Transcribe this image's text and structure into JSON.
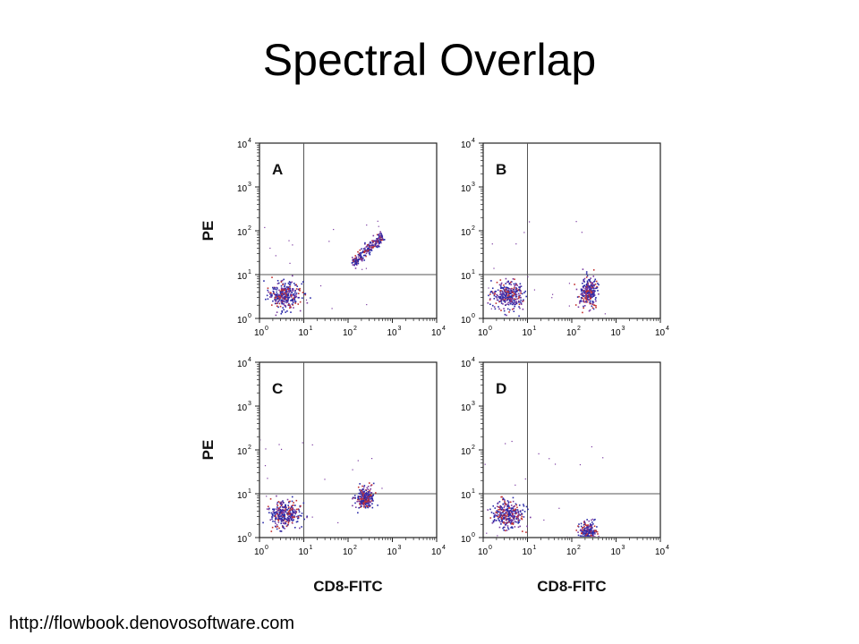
{
  "slide": {
    "title": "Spectral Overlap",
    "source_url": "http://flowbook.denovosoftware.com"
  },
  "colors": {
    "dot_primary": "#2a2aa8",
    "dot_secondary": "#c23030",
    "dot_tertiary": "#7a3aa0",
    "axis": "#222222",
    "gate": "#555555"
  },
  "chart_data": [
    {
      "type": "scatter",
      "panel_label": "A",
      "xlabel": "",
      "ylabel": "PE",
      "x_scale": "log",
      "y_scale": "log",
      "xlim": [
        1,
        10000
      ],
      "ylim": [
        1,
        10000
      ],
      "x_ticks": [
        "10",
        "10",
        "10",
        "10",
        "10"
      ],
      "x_tick_exponents": [
        "0",
        "1",
        "2",
        "3",
        "4"
      ],
      "y_ticks": [
        "10",
        "10",
        "10",
        "10",
        "10"
      ],
      "y_tick_exponents": [
        "0",
        "1",
        "2",
        "3",
        "4"
      ],
      "quadrant_gate": {
        "x": 10,
        "y": 10
      },
      "populations": [
        {
          "shape": "blob",
          "center": [
            3.5,
            3.5
          ],
          "spread": [
            0.18,
            0.16
          ],
          "count": 320
        },
        {
          "shape": "diagonal",
          "from": [
            120,
            18
          ],
          "to": [
            600,
            80
          ],
          "spread": 0.05,
          "count": 240
        }
      ]
    },
    {
      "type": "scatter",
      "panel_label": "B",
      "xlabel": "",
      "ylabel": "",
      "x_scale": "log",
      "y_scale": "log",
      "xlim": [
        1,
        10000
      ],
      "ylim": [
        1,
        10000
      ],
      "x_ticks": [
        "10",
        "10",
        "10",
        "10",
        "10"
      ],
      "x_tick_exponents": [
        "0",
        "1",
        "2",
        "3",
        "4"
      ],
      "y_ticks": [
        "10",
        "10",
        "10",
        "10",
        "10"
      ],
      "y_tick_exponents": [
        "0",
        "1",
        "2",
        "3",
        "4"
      ],
      "quadrant_gate": {
        "x": 10,
        "y": 10
      },
      "populations": [
        {
          "shape": "blob",
          "center": [
            3.5,
            3.5
          ],
          "spread": [
            0.18,
            0.16
          ],
          "count": 320
        },
        {
          "shape": "blob",
          "center": [
            230,
            4
          ],
          "spread": [
            0.1,
            0.16
          ],
          "count": 260
        }
      ]
    },
    {
      "type": "scatter",
      "panel_label": "C",
      "xlabel": "CD8-FITC",
      "ylabel": "PE",
      "x_scale": "log",
      "y_scale": "log",
      "xlim": [
        1,
        10000
      ],
      "ylim": [
        1,
        10000
      ],
      "x_ticks": [
        "10",
        "10",
        "10",
        "10",
        "10"
      ],
      "x_tick_exponents": [
        "0",
        "1",
        "2",
        "3",
        "4"
      ],
      "y_ticks": [
        "10",
        "10",
        "10",
        "10",
        "10"
      ],
      "y_tick_exponents": [
        "0",
        "1",
        "2",
        "3",
        "4"
      ],
      "quadrant_gate": {
        "x": 10,
        "y": 10
      },
      "populations": [
        {
          "shape": "blob",
          "center": [
            3.5,
            3.5
          ],
          "spread": [
            0.18,
            0.16
          ],
          "count": 320
        },
        {
          "shape": "blob",
          "center": [
            230,
            8
          ],
          "spread": [
            0.1,
            0.12
          ],
          "count": 260
        }
      ]
    },
    {
      "type": "scatter",
      "panel_label": "D",
      "xlabel": "CD8-FITC",
      "ylabel": "",
      "x_scale": "log",
      "y_scale": "log",
      "xlim": [
        1,
        10000
      ],
      "ylim": [
        1,
        10000
      ],
      "x_ticks": [
        "10",
        "10",
        "10",
        "10",
        "10"
      ],
      "x_tick_exponents": [
        "0",
        "1",
        "2",
        "3",
        "4"
      ],
      "y_ticks": [
        "10",
        "10",
        "10",
        "10",
        "10"
      ],
      "y_tick_exponents": [
        "0",
        "1",
        "2",
        "3",
        "4"
      ],
      "quadrant_gate": {
        "x": 10,
        "y": 10
      },
      "populations": [
        {
          "shape": "blob",
          "center": [
            3.5,
            3.5
          ],
          "spread": [
            0.18,
            0.16
          ],
          "count": 320
        },
        {
          "shape": "blob",
          "center": [
            230,
            1.3
          ],
          "spread": [
            0.1,
            0.13
          ],
          "count": 240
        }
      ]
    }
  ]
}
